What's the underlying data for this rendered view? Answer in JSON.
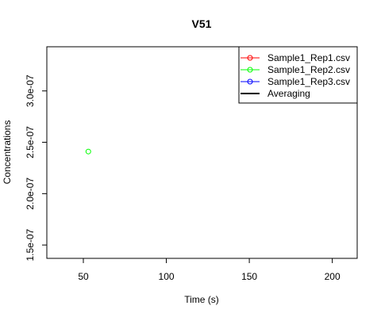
{
  "chart_data": {
    "type": "scatter",
    "title": "V51",
    "xlabel": "Time (s)",
    "ylabel": "Concentrations",
    "xlim": [
      28,
      215
    ],
    "ylim": [
      1.37e-07,
      3.43e-07
    ],
    "x_ticks": [
      50,
      100,
      150,
      200
    ],
    "x_tick_labels": [
      "50",
      "100",
      "150",
      "200"
    ],
    "y_ticks": [
      1.5e-07,
      2e-07,
      2.5e-07,
      3e-07
    ],
    "y_tick_labels": [
      "1.5e-07",
      "2.0e-07",
      "2.5e-07",
      "3.0e-07"
    ],
    "grid": false,
    "legend_position": "top-right",
    "series": [
      {
        "name": "Sample1_Rep1.csv",
        "color": "#ff0000",
        "marker": "circle",
        "points": []
      },
      {
        "name": "Sample1_Rep2.csv",
        "color": "#00ff00",
        "marker": "circle",
        "points": [
          [
            53,
            2.41e-07
          ]
        ]
      },
      {
        "name": "Sample1_Rep3.csv",
        "color": "#0000ff",
        "marker": "circle",
        "points": []
      },
      {
        "name": "Averaging",
        "color": "#000000",
        "marker": "line",
        "points": []
      }
    ]
  }
}
